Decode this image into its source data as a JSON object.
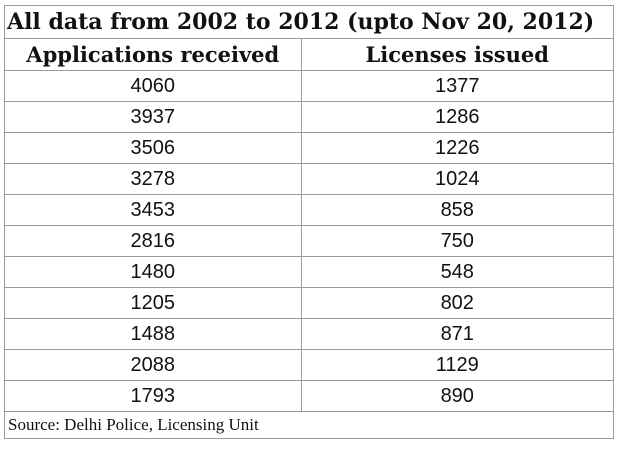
{
  "title": "All data from 2002 to 2012 (upto Nov 20, 2012)",
  "columns": [
    "Applications received",
    "Licenses issued"
  ],
  "rows": [
    [
      "4060",
      "1377"
    ],
    [
      "3937",
      "1286"
    ],
    [
      "3506",
      "1226"
    ],
    [
      "3278",
      "1024"
    ],
    [
      "3453",
      "858"
    ],
    [
      "2816",
      "750"
    ],
    [
      "1480",
      "548"
    ],
    [
      "1205",
      "802"
    ],
    [
      "1488",
      "871"
    ],
    [
      "2088",
      "1129"
    ],
    [
      "1793",
      "890"
    ]
  ],
  "source": "Source: Delhi Police, Licensing Unit"
}
